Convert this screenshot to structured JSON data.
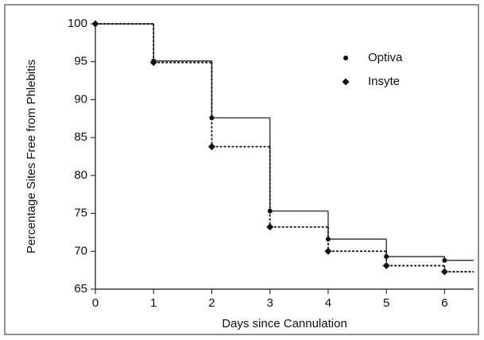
{
  "chart_data": {
    "type": "step",
    "x_label": "Days since Cannulation",
    "y_label": "Percentage Sites Free from Phlebitis",
    "x": [
      0,
      1,
      2,
      3,
      4,
      5,
      6
    ],
    "series": [
      {
        "name": "Optiva",
        "color": "#111111",
        "marker": "circle",
        "line_style": "solid",
        "values": [
          100,
          95.1,
          87.6,
          75.3,
          71.6,
          69.3,
          68.8
        ]
      },
      {
        "name": "Insyte",
        "color": "#111111",
        "marker": "diamond",
        "line_style": "dashed",
        "values": [
          100,
          94.9,
          83.8,
          73.2,
          70.0,
          68.1,
          67.3
        ]
      }
    ],
    "xlim": [
      0,
      6.5
    ],
    "xticks": [
      0,
      1,
      2,
      3,
      4,
      5,
      6
    ],
    "ylim": [
      65,
      100
    ],
    "yticks": [
      65,
      70,
      75,
      80,
      85,
      90,
      95,
      100
    ],
    "legend_position": "upper-right"
  }
}
